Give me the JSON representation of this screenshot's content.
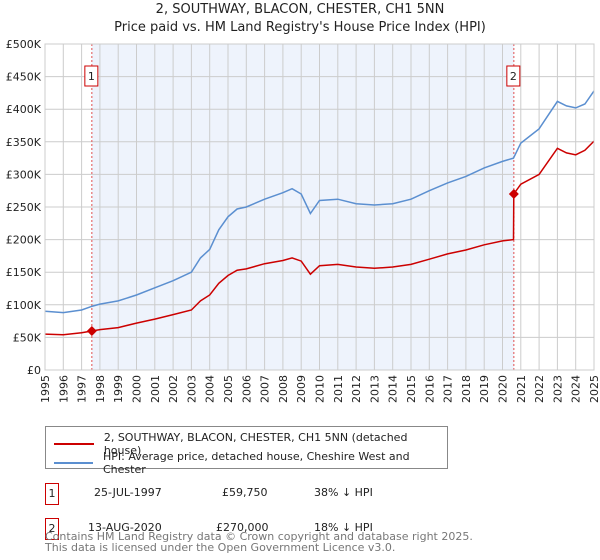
{
  "chart_data": {
    "type": "line",
    "title": "2, SOUTHWAY, BLACON, CHESTER, CH1 5NN",
    "subtitle": "Price paid vs. HM Land Registry's House Price Index (HPI)",
    "xlim": [
      1995,
      2025
    ],
    "ylim": [
      0,
      500000
    ],
    "x_ticks": [
      "1995",
      "1996",
      "1997",
      "1998",
      "1999",
      "2000",
      "2001",
      "2002",
      "2003",
      "2004",
      "2005",
      "2006",
      "2007",
      "2008",
      "2009",
      "2010",
      "2011",
      "2012",
      "2013",
      "2014",
      "2015",
      "2016",
      "2017",
      "2018",
      "2019",
      "2020",
      "2021",
      "2022",
      "2023",
      "2024",
      "2025"
    ],
    "y_ticks": [
      {
        "value": 0,
        "label": "£0"
      },
      {
        "value": 50000,
        "label": "£50K"
      },
      {
        "value": 100000,
        "label": "£100K"
      },
      {
        "value": 150000,
        "label": "£150K"
      },
      {
        "value": 200000,
        "label": "£200K"
      },
      {
        "value": 250000,
        "label": "£250K"
      },
      {
        "value": 300000,
        "label": "£300K"
      },
      {
        "value": 350000,
        "label": "£350K"
      },
      {
        "value": 400000,
        "label": "£400K"
      },
      {
        "value": 450000,
        "label": "£450K"
      },
      {
        "value": 500000,
        "label": "£500K"
      }
    ],
    "grid": true,
    "shaded_range": [
      1997.56,
      2020.62
    ],
    "series": [
      {
        "name": "2, SOUTHWAY, BLACON, CHESTER, CH1 5NN (detached house)",
        "color": "#cc0000",
        "x": [
          1995,
          1996,
          1997,
          1997.56,
          1998,
          1999,
          2000,
          2001,
          2002,
          2003,
          2003.5,
          2004,
          2004.5,
          2005,
          2005.5,
          2006,
          2007,
          2008,
          2008.5,
          2009,
          2009.5,
          2010,
          2011,
          2012,
          2013,
          2014,
          2015,
          2016,
          2017,
          2018,
          2019,
          2020,
          2020.6,
          2020.62,
          2021,
          2022,
          2023,
          2023.5,
          2024,
          2024.5,
          2025
        ],
        "y": [
          55000,
          54000,
          57000,
          59750,
          62000,
          65000,
          72000,
          78000,
          85000,
          92000,
          106000,
          115000,
          133000,
          145000,
          153000,
          155000,
          163000,
          168000,
          172000,
          167000,
          147000,
          160000,
          162000,
          158000,
          156000,
          158000,
          162000,
          170000,
          178000,
          184000,
          192000,
          198000,
          200000,
          270000,
          285000,
          300000,
          340000,
          333000,
          330000,
          337000,
          351000
        ]
      },
      {
        "name": "HPI: Average price, detached house, Cheshire West and Chester",
        "color": "#5b8fd0",
        "x": [
          1995,
          1996,
          1997,
          1997.6,
          1998,
          1999,
          2000,
          2001,
          2002,
          2003,
          2003.5,
          2004,
          2004.5,
          2005,
          2005.5,
          2006,
          2007,
          2008,
          2008.5,
          2009,
          2009.5,
          2010,
          2011,
          2012,
          2013,
          2014,
          2015,
          2016,
          2017,
          2018,
          2019,
          2020,
          2020.6,
          2021,
          2022,
          2023,
          2023.5,
          2024,
          2024.5,
          2025
        ],
        "y": [
          90000,
          88000,
          92000,
          98000,
          101000,
          106000,
          115000,
          126000,
          137000,
          150000,
          172000,
          185000,
          215000,
          235000,
          247000,
          250000,
          262000,
          272000,
          278000,
          270000,
          240000,
          260000,
          262000,
          255000,
          253000,
          255000,
          262000,
          275000,
          287000,
          297000,
          310000,
          320000,
          325000,
          348000,
          370000,
          412000,
          405000,
          402000,
          408000,
          428000
        ]
      }
    ],
    "annotations": [
      {
        "label": "1",
        "x": 1997.56,
        "y": 59750
      },
      {
        "label": "2",
        "x": 2020.62,
        "y": 270000
      }
    ]
  },
  "legend": {
    "items": [
      {
        "label": "2, SOUTHWAY, BLACON, CHESTER, CH1 5NN (detached house)",
        "color": "#cc0000"
      },
      {
        "label": "HPI: Average price, detached house, Cheshire West and Chester",
        "color": "#5b8fd0"
      }
    ]
  },
  "transactions": [
    {
      "num": "1",
      "date": "25-JUL-1997",
      "price": "£59,750",
      "hpi": "38% ↓ HPI"
    },
    {
      "num": "2",
      "date": "13-AUG-2020",
      "price": "£270,000",
      "hpi": "18% ↓ HPI"
    }
  ],
  "footer": {
    "line1": "Contains HM Land Registry data © Crown copyright and database right 2025.",
    "line2": "This data is licensed under the Open Government Licence v3.0."
  }
}
